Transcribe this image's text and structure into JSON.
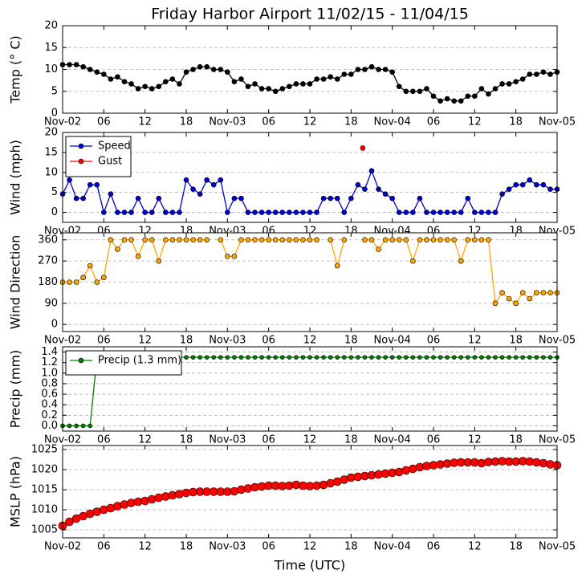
{
  "chart_data": [
    {
      "type": "line",
      "title": "Friday Harbor Airport 11/02/15 - 11/04/15",
      "ylabel": "Temp (° C)",
      "x": [
        0,
        1,
        2,
        3,
        4,
        5,
        6,
        7,
        8,
        9,
        10,
        11,
        12,
        13,
        14,
        15,
        16,
        17,
        18,
        19,
        20,
        21,
        22,
        23,
        24,
        25,
        26,
        27,
        28,
        29,
        30,
        31,
        32,
        33,
        34,
        35,
        36,
        37,
        38,
        39,
        40,
        41,
        42,
        43,
        44,
        45,
        46,
        47,
        48,
        49,
        50,
        51,
        52,
        53,
        54,
        55,
        56,
        57,
        58,
        59,
        60,
        61,
        62,
        63,
        64,
        65,
        66,
        67,
        68,
        69,
        70,
        71,
        72
      ],
      "series": [
        {
          "color": "#000000",
          "values": [
            11.1,
            11.1,
            11.1,
            10.6,
            10.0,
            9.4,
            8.9,
            7.8,
            8.3,
            7.2,
            6.7,
            5.6,
            6.1,
            5.6,
            6.1,
            7.2,
            7.8,
            6.7,
            9.4,
            10.0,
            10.6,
            10.6,
            10.0,
            10.0,
            9.4,
            7.2,
            7.8,
            6.1,
            6.7,
            5.6,
            5.6,
            5.0,
            5.6,
            6.1,
            6.7,
            6.7,
            6.7,
            7.8,
            7.8,
            8.3,
            7.8,
            8.9,
            8.9,
            10.0,
            10.0,
            10.6,
            10.0,
            10.0,
            9.4,
            6.1,
            5.0,
            5.0,
            5.0,
            5.6,
            3.9,
            2.8,
            3.3,
            2.8,
            2.8,
            3.9,
            3.9,
            5.6,
            4.4,
            5.6,
            6.7,
            6.7,
            7.2,
            7.8,
            8.9,
            8.9,
            9.4,
            8.9,
            9.4
          ]
        }
      ],
      "xlim": [
        0,
        72
      ],
      "xticks": [
        {
          "value": 0,
          "label": "Nov-02"
        },
        {
          "value": 6,
          "label": "06"
        },
        {
          "value": 12,
          "label": "12"
        },
        {
          "value": 18,
          "label": "18"
        },
        {
          "value": 24,
          "label": "Nov-03"
        },
        {
          "value": 30,
          "label": "06"
        },
        {
          "value": 36,
          "label": "12"
        },
        {
          "value": 42,
          "label": "18"
        },
        {
          "value": 48,
          "label": "Nov-04"
        },
        {
          "value": 54,
          "label": "06"
        },
        {
          "value": 60,
          "label": "12"
        },
        {
          "value": 66,
          "label": "18"
        },
        {
          "value": 72,
          "label": "Nov-05"
        }
      ],
      "ylim": [
        0,
        20
      ],
      "yticks": [
        0,
        5,
        10,
        15,
        20
      ],
      "grid": true
    },
    {
      "type": "line",
      "ylabel": "Wind (mph)",
      "legend": "upper left",
      "x": [
        0,
        1,
        2,
        3,
        4,
        5,
        6,
        7,
        8,
        9,
        10,
        11,
        12,
        13,
        14,
        15,
        16,
        17,
        18,
        19,
        20,
        21,
        22,
        23,
        24,
        25,
        26,
        27,
        28,
        29,
        30,
        31,
        32,
        33,
        34,
        35,
        36,
        37,
        38,
        39,
        40,
        41,
        42,
        43,
        44,
        45,
        46,
        47,
        48,
        49,
        50,
        51,
        52,
        53,
        54,
        55,
        56,
        57,
        58,
        59,
        60,
        61,
        62,
        63,
        64,
        65,
        66,
        67,
        68,
        69,
        70,
        71,
        72
      ],
      "series": [
        {
          "name": "Speed",
          "color": "#0000cc",
          "values": [
            4.6,
            8.1,
            3.5,
            3.5,
            6.9,
            6.9,
            0,
            4.6,
            0,
            0,
            0,
            3.5,
            0,
            0,
            3.5,
            0,
            0,
            0,
            8.1,
            5.8,
            4.6,
            8.1,
            6.9,
            8.1,
            0,
            3.5,
            3.5,
            0,
            0,
            0,
            0,
            0,
            0,
            0,
            0,
            0,
            0,
            0,
            3.5,
            3.5,
            3.5,
            0,
            3.5,
            6.9,
            5.8,
            10.4,
            5.8,
            4.6,
            3.5,
            0,
            0,
            0,
            3.5,
            0,
            0,
            0,
            0,
            0,
            0,
            3.5,
            0,
            0,
            0,
            0,
            4.6,
            5.8,
            6.9,
            6.9,
            8.1,
            6.9,
            6.9,
            5.8,
            5.8
          ]
        },
        {
          "name": "Gust",
          "color": "#ff0000",
          "x": [
            43.7
          ],
          "values": [
            16.1
          ]
        }
      ],
      "xlim": [
        0,
        72
      ],
      "xticks": [
        {
          "value": 0,
          "label": "Nov-02"
        },
        {
          "value": 6,
          "label": "06"
        },
        {
          "value": 12,
          "label": "12"
        },
        {
          "value": 18,
          "label": "18"
        },
        {
          "value": 24,
          "label": "Nov-03"
        },
        {
          "value": 30,
          "label": "06"
        },
        {
          "value": 36,
          "label": "12"
        },
        {
          "value": 42,
          "label": "18"
        },
        {
          "value": 48,
          "label": "Nov-04"
        },
        {
          "value": 54,
          "label": "06"
        },
        {
          "value": 60,
          "label": "12"
        },
        {
          "value": 66,
          "label": "18"
        },
        {
          "value": 72,
          "label": "Nov-05"
        }
      ],
      "ylim": [
        -2.5,
        20
      ],
      "yticks": [
        0,
        5,
        10,
        15,
        20
      ],
      "grid": true
    },
    {
      "type": "line",
      "ylabel": "Wind Direction",
      "x": [
        0,
        1,
        2,
        3,
        4,
        5,
        6,
        7,
        8,
        9,
        10,
        11,
        12,
        13,
        14,
        15,
        16,
        17,
        18,
        19,
        20,
        21,
        22,
        23,
        24,
        25,
        26,
        27,
        28,
        29,
        30,
        31,
        32,
        33,
        34,
        35,
        36,
        37,
        38,
        39,
        40,
        41,
        42,
        43,
        44,
        45,
        46,
        47,
        48,
        49,
        50,
        51,
        52,
        53,
        54,
        55,
        56,
        57,
        58,
        59,
        60,
        61,
        62,
        63,
        64,
        65,
        66,
        67,
        68,
        69,
        70,
        71,
        72
      ],
      "series": [
        {
          "color": "#ffa500",
          "values": [
            180,
            180,
            180,
            200,
            250,
            180,
            200,
            360,
            320,
            360,
            360,
            290,
            360,
            360,
            270,
            360,
            360,
            360,
            360,
            360,
            360,
            360,
            null,
            360,
            290,
            290,
            360,
            360,
            360,
            360,
            360,
            360,
            360,
            360,
            360,
            360,
            360,
            360,
            null,
            360,
            250,
            360,
            null,
            null,
            360,
            360,
            320,
            360,
            360,
            360,
            360,
            270,
            360,
            360,
            360,
            360,
            360,
            360,
            270,
            360,
            360,
            360,
            360,
            90,
            135,
            110,
            90,
            135,
            110,
            135,
            135,
            135,
            135
          ]
        }
      ],
      "xlim": [
        0,
        72
      ],
      "xticks": [
        {
          "value": 0,
          "label": "Nov-02"
        },
        {
          "value": 6,
          "label": "06"
        },
        {
          "value": 12,
          "label": "12"
        },
        {
          "value": 18,
          "label": "18"
        },
        {
          "value": 24,
          "label": "Nov-03"
        },
        {
          "value": 30,
          "label": "06"
        },
        {
          "value": 36,
          "label": "12"
        },
        {
          "value": 42,
          "label": "18"
        },
        {
          "value": 48,
          "label": "Nov-04"
        },
        {
          "value": 54,
          "label": "06"
        },
        {
          "value": 60,
          "label": "12"
        },
        {
          "value": 66,
          "label": "18"
        },
        {
          "value": 72,
          "label": "Nov-05"
        }
      ],
      "ylim": [
        -30,
        390
      ],
      "yticks": [
        0,
        90,
        180,
        270,
        360
      ],
      "grid": true
    },
    {
      "type": "line",
      "ylabel": "Precip (mm)",
      "legend": "upper left",
      "x": [
        0,
        1,
        2,
        3,
        4,
        5,
        6,
        7,
        8,
        9,
        10,
        11,
        12,
        13,
        14,
        15,
        16,
        17,
        18,
        19,
        20,
        21,
        22,
        23,
        24,
        25,
        26,
        27,
        28,
        29,
        30,
        31,
        32,
        33,
        34,
        35,
        36,
        37,
        38,
        39,
        40,
        41,
        42,
        43,
        44,
        45,
        46,
        47,
        48,
        49,
        50,
        51,
        52,
        53,
        54,
        55,
        56,
        57,
        58,
        59,
        60,
        61,
        62,
        63,
        64,
        65,
        66,
        67,
        68,
        69,
        70,
        71,
        72
      ],
      "series": [
        {
          "name": "Precip (1.3 mm)",
          "color": "#008000",
          "values": [
            0,
            0,
            0,
            0,
            0,
            1.3,
            1.3,
            1.3,
            1.3,
            1.3,
            1.3,
            1.3,
            1.3,
            1.3,
            1.3,
            1.3,
            1.3,
            1.3,
            1.3,
            1.3,
            1.3,
            1.3,
            1.3,
            1.3,
            1.3,
            1.3,
            1.3,
            1.3,
            1.3,
            1.3,
            1.3,
            1.3,
            1.3,
            1.3,
            1.3,
            1.3,
            1.3,
            1.3,
            1.3,
            1.3,
            1.3,
            1.3,
            1.3,
            1.3,
            1.3,
            1.3,
            1.3,
            1.3,
            1.3,
            1.3,
            1.3,
            1.3,
            1.3,
            1.3,
            1.3,
            1.3,
            1.3,
            1.3,
            1.3,
            1.3,
            1.3,
            1.3,
            1.3,
            1.3,
            1.3,
            1.3,
            1.3,
            1.3,
            1.3,
            1.3,
            1.3,
            1.3,
            1.3
          ]
        }
      ],
      "xlim": [
        0,
        72
      ],
      "xticks": [
        {
          "value": 0,
          "label": "Nov-02"
        },
        {
          "value": 6,
          "label": "06"
        },
        {
          "value": 12,
          "label": "12"
        },
        {
          "value": 18,
          "label": "18"
        },
        {
          "value": 24,
          "label": "Nov-03"
        },
        {
          "value": 30,
          "label": "06"
        },
        {
          "value": 36,
          "label": "12"
        },
        {
          "value": 42,
          "label": "18"
        },
        {
          "value": 48,
          "label": "Nov-04"
        },
        {
          "value": 54,
          "label": "06"
        },
        {
          "value": 60,
          "label": "12"
        },
        {
          "value": 66,
          "label": "18"
        },
        {
          "value": 72,
          "label": "Nov-05"
        }
      ],
      "ylim": [
        -0.1,
        1.5
      ],
      "yticks": [
        {
          "value": 0,
          "label": "0.0"
        },
        0.2,
        0.4,
        0.6,
        0.8,
        {
          "value": 1,
          "label": "1.0"
        },
        1.2,
        1.4
      ],
      "grid": true
    },
    {
      "type": "line",
      "ylabel": "MSLP (hPa)",
      "xlabel": "Time (UTC)",
      "x": [
        0,
        1,
        2,
        3,
        4,
        5,
        6,
        7,
        8,
        9,
        10,
        11,
        12,
        13,
        14,
        15,
        16,
        17,
        18,
        19,
        20,
        21,
        22,
        23,
        24,
        25,
        26,
        27,
        28,
        29,
        30,
        31,
        32,
        33,
        34,
        35,
        36,
        37,
        38,
        39,
        40,
        41,
        42,
        43,
        44,
        45,
        46,
        47,
        48,
        49,
        50,
        51,
        52,
        53,
        54,
        55,
        56,
        57,
        58,
        59,
        60,
        61,
        62,
        63,
        64,
        65,
        66,
        67,
        68,
        69,
        70,
        71,
        72
      ],
      "series": [
        {
          "color": "#ff0000",
          "values": [
            1006,
            1007,
            1007.8,
            1008.4,
            1009,
            1009.5,
            1010,
            1010.4,
            1010.9,
            1011.3,
            1011.7,
            1012,
            1012.2,
            1012.6,
            1013,
            1013.3,
            1013.6,
            1013.9,
            1014.2,
            1014.4,
            1014.5,
            1014.5,
            1014.5,
            1014.5,
            1014.5,
            1014.6,
            1015,
            1015.3,
            1015.6,
            1015.8,
            1016,
            1016,
            1015.9,
            1016,
            1016.2,
            1016,
            1015.9,
            1016,
            1016.2,
            1016.6,
            1017,
            1017.5,
            1018,
            1018.2,
            1018.4,
            1018.6,
            1018.8,
            1019,
            1019.2,
            1019.4,
            1019.8,
            1020.2,
            1020.6,
            1020.9,
            1021.1,
            1021.3,
            1021.5,
            1021.7,
            1021.8,
            1021.8,
            1021.8,
            1021.6,
            1021.9,
            1022,
            1022.1,
            1022,
            1022,
            1022.1,
            1022,
            1021.8,
            1021.6,
            1021.3,
            1021.1
          ]
        }
      ],
      "xlim": [
        0,
        72
      ],
      "xticks": [
        {
          "value": 0,
          "label": "Nov-02"
        },
        {
          "value": 6,
          "label": "06"
        },
        {
          "value": 12,
          "label": "12"
        },
        {
          "value": 18,
          "label": "18"
        },
        {
          "value": 24,
          "label": "Nov-03"
        },
        {
          "value": 30,
          "label": "06"
        },
        {
          "value": 36,
          "label": "12"
        },
        {
          "value": 42,
          "label": "18"
        },
        {
          "value": 48,
          "label": "Nov-04"
        },
        {
          "value": 54,
          "label": "06"
        },
        {
          "value": 60,
          "label": "12"
        },
        {
          "value": 66,
          "label": "18"
        },
        {
          "value": 72,
          "label": "Nov-05"
        }
      ],
      "ylim": [
        1003,
        1026
      ],
      "yticks": [
        1005,
        1010,
        1015,
        1020,
        1025
      ],
      "grid": true
    }
  ]
}
